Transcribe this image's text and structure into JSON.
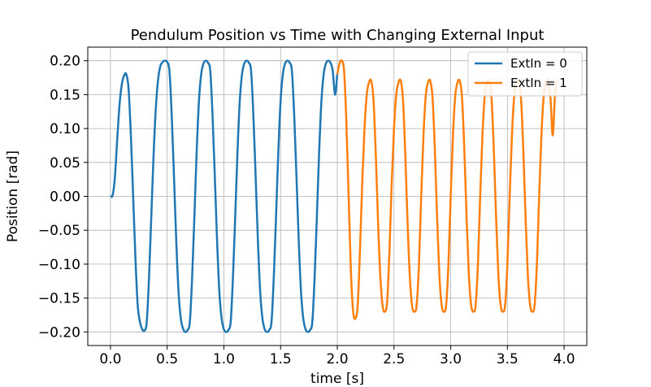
{
  "chart_data": {
    "type": "line",
    "title": "Pendulum Position vs Time with Changing External Input",
    "xlabel": "time [s]",
    "ylabel": "Position [rad]",
    "xlim": [
      -0.2,
      4.2
    ],
    "ylim": [
      -0.22,
      0.22
    ],
    "xticks": [
      0.0,
      0.5,
      1.0,
      1.5,
      2.0,
      2.5,
      3.0,
      3.5,
      4.0
    ],
    "xtick_labels": [
      "0.0",
      "0.5",
      "1.0",
      "1.5",
      "2.0",
      "2.5",
      "3.0",
      "3.5",
      "4.0"
    ],
    "yticks": [
      -0.2,
      -0.15,
      -0.1,
      -0.05,
      0.0,
      0.05,
      0.1,
      0.15,
      0.2
    ],
    "ytick_labels": [
      "−0.20",
      "−0.15",
      "−0.10",
      "−0.05",
      "0.00",
      "0.05",
      "0.10",
      "0.15",
      "0.20"
    ],
    "grid": true,
    "legend_position": "top-right",
    "series": [
      {
        "name": "ExtIn = 0",
        "color": "#1f77b4",
        "x": [
          0.0,
          0.02,
          0.04,
          0.06,
          0.08,
          0.1,
          0.12,
          0.14,
          0.16,
          0.18,
          0.2,
          0.22,
          0.24,
          0.26,
          0.28,
          0.3,
          0.32,
          0.34,
          0.36,
          0.38,
          0.4,
          0.42,
          0.44,
          0.46,
          0.48,
          0.5,
          0.52,
          0.54,
          0.56,
          0.58,
          0.6,
          0.62,
          0.64,
          0.66,
          0.68,
          0.7,
          0.72,
          0.74,
          0.76,
          0.78,
          0.8,
          0.82,
          0.84,
          0.86,
          0.88,
          0.9,
          0.92,
          0.94,
          0.96,
          0.98,
          1.0,
          1.02,
          1.04,
          1.06,
          1.08,
          1.1,
          1.12,
          1.14,
          1.16,
          1.18,
          1.2,
          1.22,
          1.24,
          1.26,
          1.28,
          1.3,
          1.32,
          1.34,
          1.36,
          1.38,
          1.4,
          1.42,
          1.44,
          1.46,
          1.48,
          1.5,
          1.52,
          1.54,
          1.56,
          1.58,
          1.6,
          1.62,
          1.64,
          1.66,
          1.68,
          1.7,
          1.72,
          1.74,
          1.76,
          1.78,
          1.8,
          1.82,
          1.84,
          1.86,
          1.88,
          1.9,
          1.92,
          1.94,
          1.96,
          1.98,
          2.0
        ],
        "y": [
          0.0,
          0.002,
          0.03,
          0.085,
          0.135,
          0.165,
          0.178,
          0.18,
          0.158,
          0.09,
          0.0,
          -0.09,
          -0.16,
          -0.185,
          -0.196,
          -0.198,
          -0.185,
          -0.12,
          -0.03,
          0.06,
          0.13,
          0.172,
          0.192,
          0.198,
          0.2,
          0.198,
          0.185,
          0.12,
          0.03,
          -0.065,
          -0.14,
          -0.18,
          -0.195,
          -0.2,
          -0.197,
          -0.185,
          -0.12,
          -0.03,
          0.065,
          0.14,
          0.18,
          0.196,
          0.2,
          0.197,
          0.185,
          0.12,
          0.03,
          -0.065,
          -0.14,
          -0.18,
          -0.196,
          -0.2,
          -0.197,
          -0.185,
          -0.12,
          -0.03,
          0.065,
          0.14,
          0.18,
          0.196,
          0.2,
          0.197,
          0.185,
          0.12,
          0.03,
          -0.065,
          -0.14,
          -0.18,
          -0.196,
          -0.2,
          -0.197,
          -0.185,
          -0.12,
          -0.03,
          0.065,
          0.14,
          0.18,
          0.196,
          0.2,
          0.197,
          0.185,
          0.12,
          0.03,
          -0.065,
          -0.14,
          -0.18,
          -0.196,
          -0.2,
          -0.197,
          -0.185,
          -0.12,
          -0.03,
          0.065,
          0.14,
          0.18,
          0.196,
          0.2,
          0.197,
          0.185,
          0.15,
          0.18
        ]
      },
      {
        "name": "ExtIn = 1",
        "color": "#ff7f0e",
        "x": [
          2.0,
          2.02,
          2.04,
          2.06,
          2.08,
          2.1,
          2.12,
          2.14,
          2.16,
          2.18,
          2.2,
          2.22,
          2.24,
          2.26,
          2.28,
          2.3,
          2.32,
          2.34,
          2.36,
          2.38,
          2.4,
          2.42,
          2.44,
          2.46,
          2.48,
          2.5,
          2.52,
          2.54,
          2.56,
          2.58,
          2.6,
          2.62,
          2.64,
          2.66,
          2.68,
          2.7,
          2.72,
          2.74,
          2.76,
          2.78,
          2.8,
          2.82,
          2.84,
          2.86,
          2.88,
          2.9,
          2.92,
          2.94,
          2.96,
          2.98,
          3.0,
          3.02,
          3.04,
          3.06,
          3.08,
          3.1,
          3.12,
          3.14,
          3.16,
          3.18,
          3.2,
          3.22,
          3.24,
          3.26,
          3.28,
          3.3,
          3.32,
          3.34,
          3.36,
          3.38,
          3.4,
          3.42,
          3.44,
          3.46,
          3.48,
          3.5,
          3.52,
          3.54,
          3.56,
          3.58,
          3.6,
          3.62,
          3.64,
          3.66,
          3.68,
          3.7,
          3.72,
          3.74,
          3.76,
          3.78,
          3.8,
          3.82,
          3.84,
          3.86,
          3.88,
          3.9,
          3.92,
          3.94
        ],
        "y": [
          0.18,
          0.196,
          0.2,
          0.185,
          0.11,
          0.0,
          -0.11,
          -0.17,
          -0.18,
          -0.16,
          -0.08,
          0.02,
          0.1,
          0.15,
          0.168,
          0.17,
          0.14,
          0.06,
          -0.04,
          -0.12,
          -0.162,
          -0.17,
          -0.155,
          -0.08,
          0.02,
          0.1,
          0.15,
          0.168,
          0.17,
          0.14,
          0.06,
          -0.04,
          -0.12,
          -0.162,
          -0.17,
          -0.16,
          -0.1,
          0.0,
          0.09,
          0.148,
          0.168,
          0.17,
          0.145,
          0.07,
          -0.03,
          -0.115,
          -0.16,
          -0.17,
          -0.16,
          -0.1,
          0.0,
          0.09,
          0.148,
          0.168,
          0.17,
          0.145,
          0.07,
          -0.03,
          -0.115,
          -0.16,
          -0.17,
          -0.16,
          -0.1,
          0.0,
          0.09,
          0.148,
          0.168,
          0.17,
          0.145,
          0.07,
          -0.03,
          -0.115,
          -0.16,
          -0.17,
          -0.16,
          -0.1,
          0.0,
          0.09,
          0.148,
          0.168,
          0.17,
          0.145,
          0.07,
          -0.03,
          -0.115,
          -0.16,
          -0.17,
          -0.16,
          -0.1,
          0.0,
          0.09,
          0.148,
          0.168,
          0.17,
          0.145,
          0.09,
          0.15,
          0.17
        ]
      }
    ]
  }
}
